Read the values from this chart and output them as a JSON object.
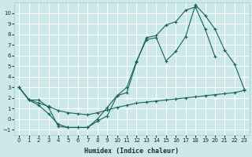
{
  "xlabel": "Humidex (Indice chaleur)",
  "bg_color": "#cce8e8",
  "grid_color": "#ffffff",
  "line_color": "#1a6060",
  "xlim": [
    -0.5,
    23.5
  ],
  "ylim": [
    -1.5,
    11.0
  ],
  "xticks": [
    0,
    1,
    2,
    3,
    4,
    5,
    6,
    7,
    8,
    9,
    10,
    11,
    12,
    13,
    14,
    15,
    16,
    17,
    18,
    19,
    20,
    21,
    22,
    23
  ],
  "yticks": [
    -1,
    0,
    1,
    2,
    3,
    4,
    5,
    6,
    7,
    8,
    9,
    10
  ],
  "line1_x": [
    0,
    1,
    2,
    3,
    4,
    5,
    6,
    7,
    8,
    9,
    10,
    11,
    12,
    13,
    14,
    15,
    16,
    17,
    18,
    19,
    20,
    21,
    22,
    23
  ],
  "line1_y": [
    3.0,
    1.8,
    1.8,
    1.1,
    -0.7,
    -0.8,
    -0.8,
    -0.8,
    0.0,
    1.1,
    2.2,
    3.0,
    5.5,
    7.5,
    7.7,
    5.5,
    6.4,
    7.8,
    10.8,
    9.8,
    8.5,
    6.5,
    5.2,
    2.8
  ],
  "line2_x": [
    0,
    1,
    2,
    3,
    4,
    5,
    6,
    7,
    8,
    9,
    10,
    11,
    12,
    13,
    14,
    15,
    16,
    17,
    18,
    19,
    20
  ],
  "line2_y": [
    3.0,
    1.8,
    1.3,
    0.5,
    -0.5,
    -0.8,
    -0.8,
    -0.8,
    -0.2,
    0.3,
    2.2,
    2.5,
    5.4,
    7.7,
    7.9,
    8.9,
    9.2,
    10.3,
    10.6,
    8.5,
    5.9
  ],
  "line3_x": [
    0,
    1,
    2,
    3,
    4,
    5,
    6,
    7,
    8,
    9,
    10,
    11,
    12,
    13,
    14,
    15,
    16,
    17,
    18,
    19,
    20,
    21,
    22,
    23
  ],
  "line3_y": [
    3.0,
    1.85,
    1.5,
    1.2,
    0.8,
    0.6,
    0.5,
    0.4,
    0.6,
    0.85,
    1.1,
    1.3,
    1.5,
    1.6,
    1.7,
    1.8,
    1.9,
    2.0,
    2.1,
    2.2,
    2.3,
    2.4,
    2.5,
    2.7
  ]
}
